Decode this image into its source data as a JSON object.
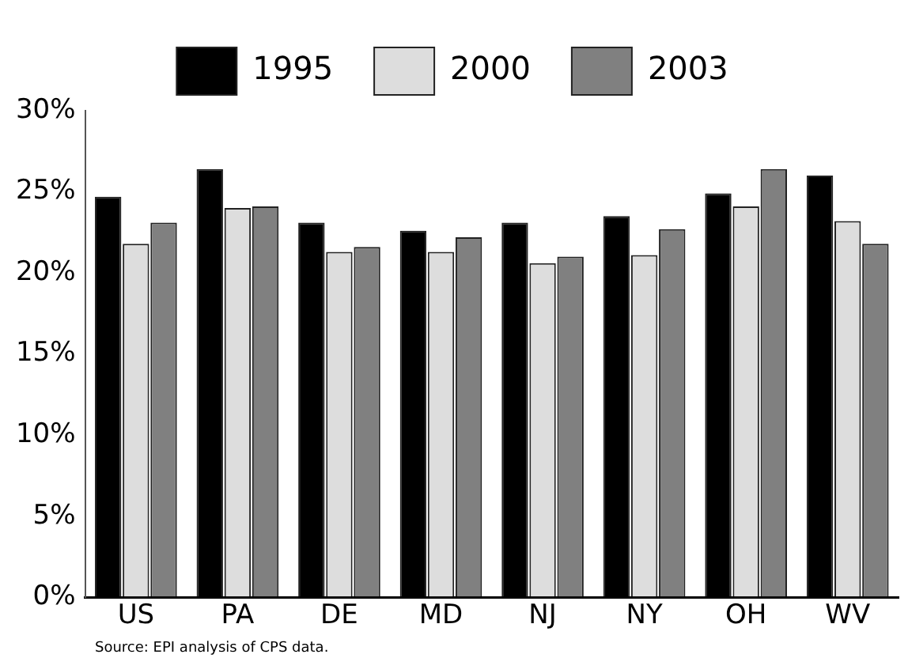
{
  "chart_data": {
    "type": "bar",
    "categories": [
      "US",
      "PA",
      "DE",
      "MD",
      "NJ",
      "NY",
      "OH",
      "WV"
    ],
    "series": [
      {
        "name": "1995",
        "color": "#000000",
        "values": [
          24.7,
          26.4,
          23.1,
          22.6,
          23.1,
          23.5,
          24.9,
          26.0
        ]
      },
      {
        "name": "2000",
        "color": "#dddddd",
        "values": [
          21.8,
          24.0,
          21.3,
          21.3,
          20.6,
          21.1,
          24.1,
          23.2
        ]
      },
      {
        "name": "2003",
        "color": "#808080",
        "values": [
          23.1,
          24.1,
          21.6,
          22.2,
          21.0,
          22.7,
          26.4,
          21.8
        ]
      }
    ],
    "ylim": [
      0,
      30
    ],
    "yticks": [
      {
        "value": 0,
        "label": "0%"
      },
      {
        "value": 5,
        "label": "5%"
      },
      {
        "value": 10,
        "label": "10%"
      },
      {
        "value": 15,
        "label": "15%"
      },
      {
        "value": 20,
        "label": "20%"
      },
      {
        "value": 25,
        "label": "25%"
      },
      {
        "value": 30,
        "label": "30%"
      }
    ],
    "grid": false,
    "legend": "top",
    "annotations": [
      "Source: EPI analysis of CPS data."
    ]
  }
}
